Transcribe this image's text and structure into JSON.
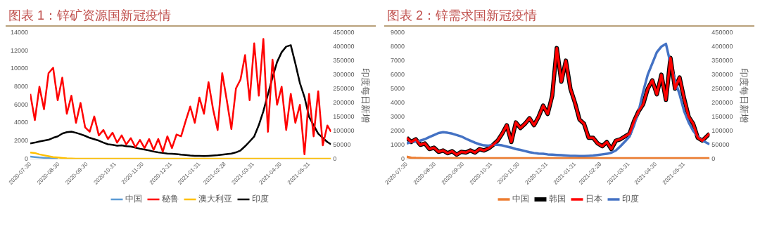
{
  "chart_data": [
    {
      "type": "line",
      "title": "图表 1：锌矿资源国新冠疫情",
      "y2label": "印度每日新增",
      "legend": "bottom",
      "grid": false,
      "x": [
        "2020-07-30",
        "2020-08-04",
        "2020-08-09",
        "2020-08-14",
        "2020-08-19",
        "2020-08-24",
        "2020-08-29",
        "2020-09-03",
        "2020-09-08",
        "2020-09-13",
        "2020-09-18",
        "2020-09-23",
        "2020-09-28",
        "2020-10-03",
        "2020-10-08",
        "2020-10-13",
        "2020-10-18",
        "2020-10-23",
        "2020-10-28",
        "2020-11-02",
        "2020-11-07",
        "2020-11-12",
        "2020-11-17",
        "2020-11-22",
        "2020-11-27",
        "2020-12-02",
        "2020-12-07",
        "2020-12-12",
        "2020-12-17",
        "2020-12-22",
        "2020-12-27",
        "2021-01-01",
        "2021-01-06",
        "2021-01-11",
        "2021-01-16",
        "2021-01-21",
        "2021-01-26",
        "2021-01-31",
        "2021-02-05",
        "2021-02-10",
        "2021-02-15",
        "2021-02-20",
        "2021-02-25",
        "2021-03-02",
        "2021-03-07",
        "2021-03-12",
        "2021-03-17",
        "2021-03-22",
        "2021-03-27",
        "2021-04-01",
        "2021-04-06",
        "2021-04-11",
        "2021-04-16",
        "2021-04-21",
        "2021-04-26",
        "2021-05-01",
        "2021-05-06",
        "2021-05-11",
        "2021-05-16",
        "2021-05-21",
        "2021-05-26",
        "2021-05-31",
        "2021-06-05",
        "2021-06-10",
        "2021-06-15",
        "2021-06-20",
        "2021-06-24"
      ],
      "xlim": [
        "2020-07-30",
        "2021-06-24"
      ],
      "xticks": [
        "2020-07-30",
        "2020-08-30",
        "2020-09-30",
        "2020-10-31",
        "2020-11-30",
        "2020-12-31",
        "2021-01-31",
        "2021-02-28",
        "2021-03-31",
        "2021-04-30",
        "2021-05-31"
      ],
      "ylim": [
        0,
        14000
      ],
      "yticks": [
        0,
        2000,
        4000,
        6000,
        8000,
        10000,
        12000,
        14000
      ],
      "y2lim": [
        0,
        450000
      ],
      "y2ticks": [
        0,
        50000,
        100000,
        150000,
        200000,
        250000,
        300000,
        350000,
        400000,
        450000
      ],
      "series": [
        {
          "name": "中国",
          "color": "#5b9bd5",
          "values": [
            250,
            200,
            150,
            120,
            80,
            50,
            20,
            null,
            null,
            null,
            null,
            null,
            null,
            null,
            null,
            null,
            null,
            null,
            null,
            null,
            null,
            null,
            null,
            null,
            null,
            null,
            null,
            null,
            null,
            null,
            null,
            null,
            null,
            null,
            null,
            null,
            null,
            null,
            null,
            null,
            null,
            null,
            null,
            null,
            null,
            null,
            null,
            null,
            null,
            null,
            null,
            null,
            null,
            null,
            null,
            null,
            null,
            null,
            null,
            null,
            null,
            null,
            null,
            null,
            null,
            null,
            null
          ]
        },
        {
          "name": "秘鲁",
          "color": "#ff0000",
          "values": [
            7200,
            4300,
            8000,
            5500,
            9500,
            10100,
            6500,
            9000,
            5000,
            7000,
            4000,
            6200,
            3500,
            3000,
            4700,
            2600,
            3200,
            2200,
            2900,
            1800,
            2600,
            1600,
            2300,
            1300,
            2100,
            1200,
            2200,
            1000,
            2200,
            800,
            2500,
            1200,
            2700,
            2500,
            4200,
            5800,
            4000,
            6800,
            5000,
            8500,
            5500,
            3200,
            9500,
            6500,
            3300,
            7800,
            8800,
            11500,
            6500,
            12800,
            7000,
            13300,
            3000,
            11000,
            6000,
            8000,
            3200,
            7200,
            4000,
            6000,
            500,
            7200,
            2500,
            7500,
            1500,
            3700,
            3000
          ]
        },
        {
          "name": "澳大利亚",
          "color": "#ffc000",
          "values": [
            700,
            650,
            500,
            400,
            300,
            200,
            150,
            100,
            60,
            40,
            30,
            20,
            20,
            20,
            20,
            20,
            20,
            20,
            20,
            20,
            20,
            20,
            20,
            20,
            20,
            20,
            20,
            20,
            20,
            20,
            20,
            20,
            20,
            20,
            20,
            20,
            20,
            20,
            20,
            20,
            20,
            20,
            20,
            20,
            20,
            20,
            20,
            20,
            20,
            20,
            20,
            20,
            20,
            20,
            20,
            20,
            20,
            20,
            20,
            20,
            20,
            20,
            20,
            20,
            20,
            20,
            20
          ]
        },
        {
          "name": "印度",
          "color": "#000000",
          "axis": "y2",
          "values": [
            55000,
            58000,
            62000,
            65000,
            68000,
            75000,
            80000,
            90000,
            95000,
            97000,
            93000,
            88000,
            82000,
            75000,
            70000,
            65000,
            58000,
            52000,
            50000,
            47000,
            48000,
            45000,
            44000,
            40000,
            36000,
            33000,
            30000,
            26000,
            23000,
            21000,
            19000,
            18000,
            17000,
            15000,
            14000,
            12000,
            11000,
            11000,
            10000,
            11000,
            12000,
            13000,
            15000,
            17000,
            19000,
            23000,
            30000,
            45000,
            62000,
            80000,
            120000,
            170000,
            230000,
            290000,
            345000,
            380000,
            400000,
            405000,
            340000,
            270000,
            220000,
            150000,
            120000,
            90000,
            75000,
            60000,
            52000
          ]
        }
      ]
    },
    {
      "type": "line",
      "title": "图表 2：锌需求国新冠疫情",
      "y2label": "印度每日新增",
      "legend": "bottom",
      "grid": false,
      "x": [
        "2020-07-30",
        "2020-08-04",
        "2020-08-09",
        "2020-08-14",
        "2020-08-19",
        "2020-08-24",
        "2020-08-29",
        "2020-09-03",
        "2020-09-08",
        "2020-09-13",
        "2020-09-18",
        "2020-09-23",
        "2020-09-28",
        "2020-10-03",
        "2020-10-08",
        "2020-10-13",
        "2020-10-18",
        "2020-10-23",
        "2020-10-28",
        "2020-11-02",
        "2020-11-07",
        "2020-11-12",
        "2020-11-17",
        "2020-11-22",
        "2020-11-27",
        "2020-12-02",
        "2020-12-07",
        "2020-12-12",
        "2020-12-17",
        "2020-12-22",
        "2020-12-27",
        "2021-01-01",
        "2021-01-06",
        "2021-01-11",
        "2021-01-16",
        "2021-01-21",
        "2021-01-26",
        "2021-01-31",
        "2021-02-05",
        "2021-02-10",
        "2021-02-15",
        "2021-02-20",
        "2021-02-25",
        "2021-03-02",
        "2021-03-07",
        "2021-03-12",
        "2021-03-17",
        "2021-03-22",
        "2021-03-27",
        "2021-04-01",
        "2021-04-06",
        "2021-04-11",
        "2021-04-16",
        "2021-04-21",
        "2021-04-26",
        "2021-05-01",
        "2021-05-06",
        "2021-05-11",
        "2021-05-16",
        "2021-05-21",
        "2021-05-26",
        "2021-05-31",
        "2021-06-05",
        "2021-06-10",
        "2021-06-15",
        "2021-06-20",
        "2021-06-28"
      ],
      "xlim": [
        "2020-07-30",
        "2021-06-28"
      ],
      "xticks": [
        "2020-07-30",
        "2020-08-30",
        "2020-09-30",
        "2020-10-31",
        "2020-11-30",
        "2020-12-31",
        "2021-01-31",
        "2021-02-28",
        "2021-03-31",
        "2021-04-30",
        "2021-05-31"
      ],
      "ylim": [
        0,
        9000
      ],
      "yticks": [
        0,
        1000,
        2000,
        3000,
        4000,
        5000,
        6000,
        7000,
        8000,
        9000
      ],
      "y2lim": [
        0,
        450000
      ],
      "y2ticks": [
        0,
        50000,
        100000,
        150000,
        200000,
        250000,
        300000,
        350000,
        400000,
        450000
      ],
      "series": [
        {
          "name": "中国",
          "color": "#ed7d31",
          "values": [
            150,
            80,
            60,
            50,
            40,
            40,
            40,
            40,
            40,
            40,
            40,
            40,
            40,
            40,
            40,
            40,
            40,
            40,
            40,
            40,
            40,
            40,
            40,
            40,
            40,
            40,
            40,
            40,
            40,
            40,
            40,
            40,
            40,
            40,
            40,
            40,
            40,
            40,
            40,
            40,
            40,
            40,
            40,
            40,
            40,
            40,
            40,
            40,
            40,
            40,
            40,
            40,
            40,
            40,
            40,
            40,
            40,
            40,
            40,
            40,
            40,
            40,
            40,
            40,
            40,
            40,
            40
          ]
        },
        {
          "name": "韩国",
          "color": "#000000",
          "values": [
            1500,
            1200,
            1400,
            1000,
            1100,
            700,
            800,
            500,
            600,
            400,
            550,
            300,
            500,
            450,
            600,
            450,
            700,
            600,
            750,
            1000,
            1300,
            1800,
            2400,
            1200,
            2600,
            2200,
            2500,
            2900,
            2400,
            3000,
            3800,
            3200,
            4500,
            7900,
            5500,
            7000,
            5000,
            4000,
            2800,
            2500,
            1500,
            1500,
            1100,
            900,
            1200,
            700,
            1300,
            1400,
            1600,
            1800,
            2700,
            3400,
            3900,
            5000,
            5600,
            4600,
            6000,
            4200,
            7200,
            5000,
            5800,
            4300,
            3000,
            2500,
            1500,
            1300,
            1800
          ]
        },
        {
          "name": "日本",
          "color": "#ff0000",
          "values": [
            1500,
            1200,
            1400,
            1000,
            1100,
            700,
            800,
            500,
            600,
            400,
            550,
            300,
            500,
            450,
            600,
            450,
            700,
            600,
            750,
            1000,
            1300,
            1800,
            2400,
            1200,
            2600,
            2200,
            2500,
            2900,
            2400,
            3000,
            3800,
            3200,
            4500,
            7900,
            5500,
            7000,
            5000,
            4000,
            2800,
            2500,
            1500,
            1500,
            1100,
            900,
            1200,
            700,
            1300,
            1400,
            1600,
            1800,
            2700,
            3400,
            3900,
            5000,
            5600,
            4600,
            6000,
            4200,
            7200,
            5000,
            5800,
            4300,
            3000,
            2500,
            1500,
            1300,
            1800
          ]
        },
        {
          "name": "印度",
          "color": "#4472c4",
          "axis": "y2",
          "values": [
            55000,
            60000,
            62000,
            65000,
            70000,
            78000,
            85000,
            92000,
            95000,
            93000,
            90000,
            85000,
            80000,
            72000,
            65000,
            58000,
            52000,
            48000,
            47000,
            50000,
            50000,
            48000,
            44000,
            40000,
            35000,
            32000,
            28000,
            24000,
            21000,
            19000,
            18000,
            16000,
            15000,
            14000,
            13000,
            12000,
            11000,
            11000,
            10000,
            10000,
            11000,
            12000,
            14000,
            16000,
            18000,
            22000,
            30000,
            45000,
            62000,
            80000,
            120000,
            170000,
            240000,
            300000,
            340000,
            380000,
            400000,
            410000,
            340000,
            280000,
            230000,
            170000,
            130000,
            100000,
            80000,
            65000,
            52000
          ]
        }
      ]
    }
  ]
}
